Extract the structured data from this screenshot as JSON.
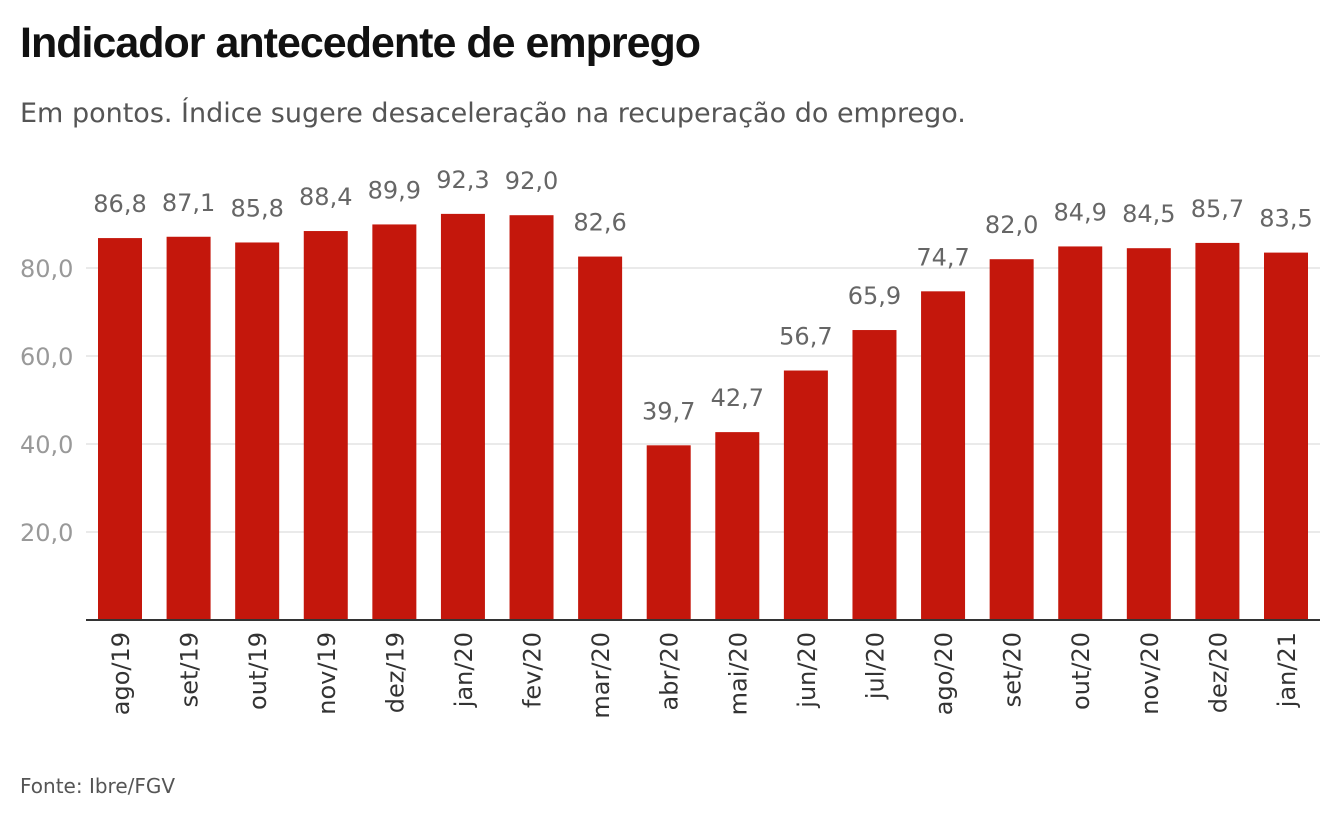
{
  "title": "Indicador antecedente de emprego",
  "subtitle": "Em pontos. Índice sugere desaceleração na recuperação do emprego.",
  "source": "Fonte: Ibre/FGV",
  "chart_data": {
    "type": "bar",
    "categories": [
      "ago/19",
      "set/19",
      "out/19",
      "nov/19",
      "dez/19",
      "jan/20",
      "fev/20",
      "mar/20",
      "abr/20",
      "mai/20",
      "jun/20",
      "jul/20",
      "ago/20",
      "set/20",
      "out/20",
      "nov/20",
      "dez/20",
      "jan/21"
    ],
    "values": [
      86.8,
      87.1,
      85.8,
      88.4,
      89.9,
      92.3,
      92.0,
      82.6,
      39.7,
      42.7,
      56.7,
      65.9,
      74.7,
      82.0,
      84.9,
      84.5,
      85.7,
      83.5
    ],
    "value_labels": [
      "86,8",
      "87,1",
      "85,8",
      "88,4",
      "89,9",
      "92,3",
      "92,0",
      "82,6",
      "39,7",
      "42,7",
      "56,7",
      "65,9",
      "74,7",
      "82,0",
      "84,9",
      "84,5",
      "85,7",
      "83,5"
    ],
    "yticks": [
      20,
      40,
      60,
      80
    ],
    "ytick_labels": [
      "20,0",
      "40,0",
      "60,0",
      "80,0"
    ],
    "ylim": [
      0,
      100
    ],
    "grid": true,
    "bar_color": "#c4170c",
    "label_color": "#666666",
    "tick_color": "#999999",
    "category_color": "#333333"
  }
}
